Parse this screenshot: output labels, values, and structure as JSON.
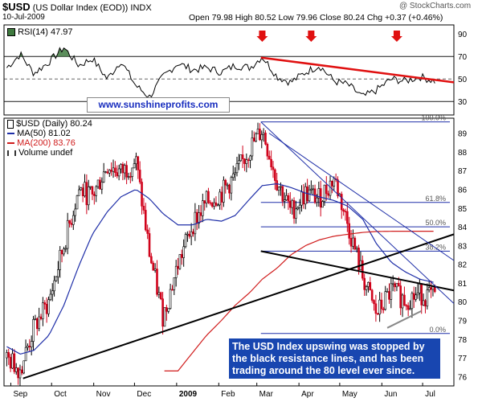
{
  "header": {
    "symbol": "$USD",
    "name": "(US Dollar Index (EOD))",
    "exchange": "INDX",
    "date": "10-Jul-2009",
    "quote": "Open 79.98  High 80.52  Low 79.96  Close 80.24  Chg +0.37 (+0.46%)",
    "watermark": "@ StockCharts.com"
  },
  "rsi_panel": {
    "label": "RSI(14) 47.97",
    "y_ticks": [
      30,
      50,
      70,
      90
    ],
    "ylim": [
      18,
      98
    ]
  },
  "price_panel": {
    "label": "$USD (Daily) 80.24",
    "ma50_label": "MA(50) 81.02",
    "ma200_label": "MA(200) 83.76",
    "volume_label": "Volume undef",
    "y_ticks": [
      76,
      77,
      78,
      79,
      80,
      81,
      82,
      83,
      84,
      85,
      86,
      87,
      88,
      89
    ],
    "ylim": [
      75.5,
      89.8
    ]
  },
  "x_ticks": [
    "Sep",
    "Oct",
    "Nov",
    "Dec",
    "2009",
    "Feb",
    "Mar",
    "Apr",
    "May",
    "Jun",
    "Jul"
  ],
  "website": "www.sunshineprofits.com",
  "fib_levels": [
    {
      "label": "100.0%",
      "price": 89.6
    },
    {
      "label": "61.8%",
      "price": 85.3
    },
    {
      "label": "50.0%",
      "price": 84.0
    },
    {
      "label": "38.2%",
      "price": 82.7
    },
    {
      "label": "0.0%",
      "price": 78.3
    }
  ],
  "annotation": "The USD Index upswing was stopped by the black resistance lines, and has been trading around the 80 level ever since.",
  "colors": {
    "up_candle": "#000000",
    "down_candle": "#d0021b",
    "ma50": "#1f2fa8",
    "ma200": "#d01c1c",
    "rsi": "#000000",
    "rsi_fill": "#3f7a3f",
    "arrow": "#e01010",
    "resistance": "#000000",
    "website": "#1a2fbf",
    "annotation_bg": "#1846b0"
  },
  "chart_data": [
    {
      "type": "line",
      "title": "RSI(14) 47.97",
      "x": [
        "2008-08-29",
        "2008-09-08",
        "2008-09-18",
        "2008-09-29",
        "2008-10-10",
        "2008-10-21",
        "2008-10-31",
        "2008-11-11",
        "2008-11-21",
        "2008-12-02",
        "2008-12-12",
        "2008-12-22",
        "2009-01-02",
        "2009-01-13",
        "2009-01-23",
        "2009-02-03",
        "2009-02-13",
        "2009-02-24",
        "2009-03-05",
        "2009-03-16",
        "2009-03-26",
        "2009-04-06",
        "2009-04-16",
        "2009-04-27",
        "2009-05-07",
        "2009-05-18",
        "2009-05-28",
        "2009-06-08",
        "2009-06-18",
        "2009-06-29",
        "2009-07-10"
      ],
      "y": [
        60,
        72,
        55,
        65,
        78,
        62,
        68,
        50,
        66,
        44,
        34,
        52,
        64,
        58,
        60,
        56,
        62,
        60,
        70,
        52,
        47,
        56,
        62,
        48,
        45,
        34,
        40,
        50,
        48,
        52,
        48
      ],
      "ylim": [
        18,
        98
      ],
      "reference_lines": [
        30,
        50,
        70
      ]
    },
    {
      "type": "line",
      "title": "$USD (Daily) 80.24",
      "x": [
        "2008-08-29",
        "2008-09-08",
        "2008-09-18",
        "2008-09-29",
        "2008-10-10",
        "2008-10-21",
        "2008-10-31",
        "2008-11-11",
        "2008-11-21",
        "2008-12-02",
        "2008-12-12",
        "2008-12-22",
        "2009-01-02",
        "2009-01-13",
        "2009-01-23",
        "2009-02-03",
        "2009-02-13",
        "2009-02-24",
        "2009-03-05",
        "2009-03-16",
        "2009-03-26",
        "2009-04-06",
        "2009-04-16",
        "2009-04-27",
        "2009-05-07",
        "2009-05-18",
        "2009-05-28",
        "2009-06-08",
        "2009-06-18",
        "2009-06-29",
        "2009-07-10"
      ],
      "series": [
        {
          "name": "$USD (Daily) 80.24",
          "values": [
            77.0,
            76.4,
            78.6,
            80.0,
            83.0,
            86.0,
            85.6,
            87.3,
            86.9,
            87.5,
            82.6,
            79.2,
            82.0,
            84.2,
            85.3,
            85.8,
            86.7,
            88.2,
            89.2,
            86.4,
            84.8,
            85.8,
            85.5,
            86.6,
            84.1,
            81.3,
            79.3,
            80.6,
            80.1,
            80.4,
            80.24
          ]
        },
        {
          "name": "MA(50) 81.02",
          "values": [
            77.6,
            77.2,
            77.4,
            78.2,
            79.8,
            81.9,
            83.6,
            84.8,
            85.6,
            86.0,
            85.5,
            84.7,
            84.1,
            84.1,
            84.4,
            84.3,
            84.6,
            85.5,
            86.2,
            86.3,
            86.1,
            85.8,
            85.6,
            85.4,
            85.1,
            84.4,
            83.1,
            82.1,
            81.6,
            81.2,
            81.02
          ]
        },
        {
          "name": "MA(200) 83.76",
          "values": [
            null,
            null,
            null,
            null,
            null,
            null,
            null,
            null,
            null,
            null,
            null,
            null,
            76.3,
            77.3,
            78.2,
            79.0,
            79.8,
            80.5,
            81.2,
            81.8,
            82.5,
            83.0,
            83.3,
            83.5,
            83.6,
            83.7,
            83.75,
            83.76,
            83.76,
            83.76,
            83.76
          ]
        }
      ],
      "ylim": [
        75.5,
        89.8
      ],
      "y_ticks": [
        76,
        77,
        78,
        79,
        80,
        81,
        82,
        83,
        84,
        85,
        86,
        87,
        88,
        89
      ]
    }
  ]
}
